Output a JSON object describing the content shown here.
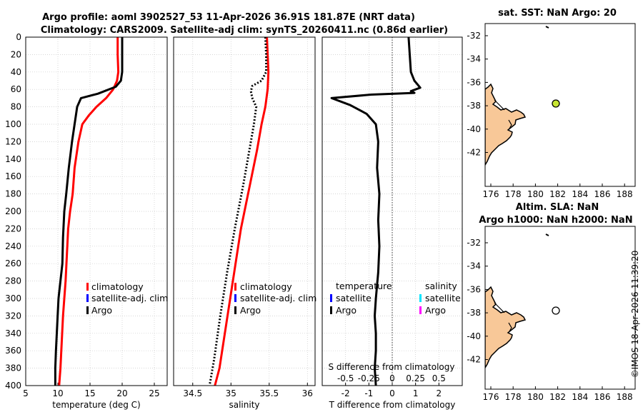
{
  "title": {
    "line1": "Argo profile: aoml 3902527_53 11-Apr-2026 36.91S 181.87E (NRT data)",
    "line2": "Climatology: CARS2009. Satellite-adj clim: synTS_20260411.nc (0.86d earlier)"
  },
  "panels": {
    "temperature": {
      "xlabel": "temperature (deg C)",
      "xticks": [
        "5",
        "10",
        "15",
        "20",
        "25"
      ],
      "xlim": [
        5,
        27
      ],
      "legend": [
        "climatology",
        "satellite-adj. clim",
        "Argo"
      ]
    },
    "salinity": {
      "xlabel": "salinity",
      "xticks": [
        "34.5",
        "35",
        "35.5",
        "36"
      ],
      "xlim": [
        34.25,
        36.1
      ],
      "legend": [
        "climatology",
        "satellite-adj. clim",
        "Argo"
      ]
    },
    "difference": {
      "xlabel": "T difference from climatology",
      "top_label": "S difference from climatology",
      "xticks": [
        "-2",
        "-1",
        "0",
        "1",
        "2"
      ],
      "s_ticks": [
        "-0.5",
        "-0.25",
        "0",
        "0.25",
        "0.5"
      ],
      "xlim": [
        -3,
        3
      ],
      "legend_temp_title": "temperature",
      "legend_temp": [
        "satellite",
        "Argo"
      ],
      "legend_sal_title": "salinity",
      "legend_sal": [
        "satellite",
        "Argo"
      ]
    },
    "depth_ticks": [
      "0",
      "20",
      "40",
      "60",
      "80",
      "100",
      "120",
      "140",
      "160",
      "180",
      "200",
      "220",
      "240",
      "260",
      "280",
      "300",
      "320",
      "340",
      "360",
      "380",
      "400"
    ],
    "map1": {
      "title": "sat. SST: NaN Argo: 20",
      "yticks": [
        "-32",
        "-34",
        "-36",
        "-38",
        "-40",
        "-42"
      ],
      "xticks": [
        "176",
        "178",
        "180",
        "182",
        "184",
        "186",
        "188"
      ]
    },
    "map2": {
      "title1": "Altim. SLA: NaN",
      "title2": "Argo h1000: NaN h2000: NaN",
      "yticks": [
        "-32",
        "-34",
        "-36",
        "-38",
        "-40",
        "-42"
      ],
      "xticks": [
        "176",
        "178",
        "180",
        "182",
        "184",
        "186",
        "188"
      ]
    }
  },
  "watermark": "©IMOS 18-Apr-2026 11:39:20",
  "colors": {
    "climatology": "#ff0000",
    "satellite": "#0000ff",
    "argo": "#000000",
    "sal_satellite": "#00e5ff",
    "sal_argo": "#ff00ff",
    "land": "#f8c898",
    "float_marker": "#c8e632"
  },
  "chart_data": [
    {
      "type": "line",
      "title": "temperature profile",
      "xlabel": "temperature (deg C)",
      "ylabel": "depth",
      "xlim": [
        5,
        27
      ],
      "ylim": [
        400,
        0
      ],
      "series": [
        {
          "name": "climatology",
          "x": [
            19.3,
            19.3,
            19.4,
            19.2,
            18.6,
            17.5,
            16.0,
            14.8,
            13.8,
            13.2,
            12.6,
            12.3,
            11.9,
            11.6,
            11.4,
            11.2,
            11.0,
            10.8,
            10.6,
            10.4,
            10.2
          ],
          "y": [
            0,
            20,
            40,
            50,
            60,
            70,
            80,
            90,
            100,
            120,
            150,
            180,
            200,
            220,
            250,
            280,
            300,
            320,
            350,
            380,
            400
          ]
        },
        {
          "name": "Argo",
          "x": [
            20.0,
            20.0,
            20.0,
            19.8,
            19.0,
            16.2,
            13.6,
            13.0,
            12.6,
            12.2,
            11.7,
            11.3,
            11.0,
            10.8,
            10.7,
            10.4,
            10.1,
            9.9,
            9.7,
            9.6,
            9.6
          ],
          "y": [
            0,
            20,
            40,
            50,
            57,
            65,
            70,
            80,
            100,
            120,
            150,
            180,
            200,
            230,
            260,
            280,
            300,
            330,
            360,
            380,
            400
          ]
        }
      ]
    },
    {
      "type": "line",
      "title": "salinity profile",
      "xlabel": "salinity",
      "ylabel": "depth",
      "xlim": [
        34.25,
        36.1
      ],
      "ylim": [
        400,
        0
      ],
      "series": [
        {
          "name": "climatology",
          "x": [
            35.47,
            35.48,
            35.49,
            35.48,
            35.45,
            35.4,
            35.34,
            35.27,
            35.2,
            35.13,
            35.06,
            34.99,
            34.92,
            34.85,
            34.79
          ],
          "y": [
            0,
            20,
            40,
            60,
            80,
            100,
            130,
            160,
            190,
            220,
            260,
            300,
            340,
            380,
            400
          ]
        },
        {
          "name": "Argo",
          "x": [
            35.45,
            35.46,
            35.46,
            35.4,
            35.28,
            35.26,
            35.28,
            35.33,
            35.3,
            35.24,
            35.16,
            35.05,
            34.95,
            34.86,
            34.78,
            34.72
          ],
          "y": [
            0,
            20,
            40,
            50,
            56,
            62,
            70,
            80,
            100,
            130,
            170,
            220,
            270,
            320,
            370,
            400
          ]
        }
      ]
    },
    {
      "type": "line",
      "title": "T difference from climatology",
      "xlabel": "T difference from climatology",
      "ylabel": "depth",
      "xlim": [
        -3,
        3
      ],
      "ylim": [
        400,
        0
      ],
      "series": [
        {
          "name": "Argo",
          "x": [
            0.7,
            0.75,
            0.8,
            0.95,
            1.2,
            0.8,
            0.95,
            -0.9,
            -2.6,
            -1.8,
            -1.1,
            -0.7,
            -0.6,
            -0.65,
            -0.55,
            -0.6,
            -0.55,
            -0.6,
            -0.7,
            -0.75,
            -0.7,
            -0.7,
            -0.75,
            -0.7
          ],
          "y": [
            0,
            20,
            40,
            50,
            58,
            62,
            64,
            66,
            70,
            78,
            88,
            100,
            120,
            150,
            180,
            210,
            240,
            270,
            300,
            320,
            340,
            360,
            380,
            400
          ]
        }
      ]
    }
  ]
}
